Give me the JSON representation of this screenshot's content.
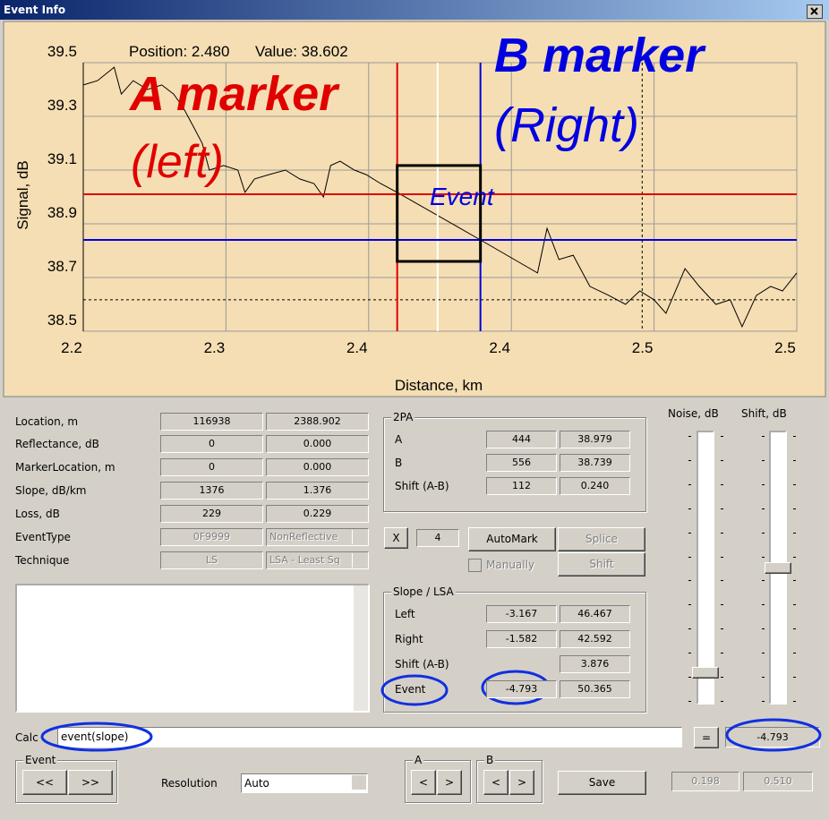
{
  "window": {
    "title": "Event Info"
  },
  "chart_data": {
    "type": "line",
    "cursor_text": [
      "Position: 2.480",
      "Value: 38.602"
    ],
    "x_label": "Distance, km",
    "y_label": "Signal, dB",
    "annotations": [
      "A marker",
      "(left)",
      "B marker",
      "(Right)",
      "Event"
    ],
    "xlim": [
      2.24,
      2.54
    ],
    "ylim": [
      38.5,
      39.5
    ],
    "xticks": [
      {
        "value": 2.24,
        "label": "2.2"
      },
      2.3,
      {
        "value": 2.36,
        "label": "2.4"
      },
      {
        "value": 2.42,
        "label": "2.4"
      },
      {
        "value": 2.48,
        "label": "2.5"
      },
      {
        "value": 2.54,
        "label": "2.5"
      }
    ],
    "yticks": [
      38.5,
      38.7,
      38.9,
      39.1,
      39.3,
      39.5
    ],
    "grid": true,
    "series": [
      {
        "color": "#000000",
        "x": [
          2.24,
          2.246,
          2.253,
          2.256,
          2.261,
          2.267,
          2.273,
          2.278,
          2.282,
          2.286,
          2.29,
          2.293,
          2.299,
          2.305,
          2.308,
          2.312,
          2.318,
          2.325,
          2.331,
          2.337,
          2.341,
          2.344,
          2.348,
          2.354,
          2.359,
          2.365,
          2.372,
          2.407,
          2.431,
          2.435,
          2.44,
          2.446,
          2.453,
          2.461,
          2.468,
          2.474,
          2.48,
          2.485,
          2.493,
          2.499,
          2.506,
          2.512,
          2.517,
          2.523,
          2.529,
          2.534,
          2.54
        ],
        "values": [
          39.417,
          39.433,
          39.483,
          39.383,
          39.433,
          39.4,
          39.417,
          39.383,
          39.333,
          39.267,
          39.2,
          39.1,
          39.117,
          39.1,
          39.017,
          39.067,
          39.083,
          39.1,
          39.067,
          39.05,
          39.0,
          39.117,
          39.133,
          39.1,
          39.083,
          39.05,
          39.017,
          38.84,
          38.717,
          38.883,
          38.767,
          38.783,
          38.667,
          38.633,
          38.6,
          38.65,
          38.617,
          38.567,
          38.733,
          38.667,
          38.6,
          38.617,
          38.517,
          38.633,
          38.667,
          38.65,
          38.717
        ]
      }
    ],
    "a_marker": {
      "x": 2.372,
      "y": 39.01,
      "color": "#e00000"
    },
    "b_marker": {
      "x": 2.407,
      "y": 38.84,
      "color": "#0000e0"
    },
    "cursor_x": 2.389,
    "ref_marker": {
      "x": 2.475,
      "y": 38.617
    },
    "event_box": {
      "x": [
        2.372,
        2.407
      ],
      "y": [
        38.76,
        39.117
      ]
    }
  },
  "fields": {
    "rows": [
      {
        "label": "Location, m",
        "values": [
          "116938",
          "2388.902"
        ]
      },
      {
        "label": "Reflectance, dB",
        "values": [
          "0",
          "0.000"
        ]
      },
      {
        "label": "MarkerLocation, m",
        "values": [
          "0",
          "0.000"
        ]
      },
      {
        "label": "Slope, dB/km",
        "values": [
          "1376",
          "1.376"
        ]
      },
      {
        "label": "Loss, dB",
        "values": [
          "229",
          "0.229"
        ]
      },
      {
        "label": "EventType",
        "values": [
          "0F9999",
          "NonReflective"
        ]
      },
      {
        "label": "Technique",
        "values": [
          "LS",
          "LSA - Least Sq"
        ]
      }
    ]
  },
  "two_pa": {
    "title": "2PA",
    "rows": [
      {
        "label": "A",
        "values": [
          "444",
          "38.979"
        ]
      },
      {
        "label": "B",
        "values": [
          "556",
          "38.739"
        ]
      },
      {
        "label": "Shift (A-B)",
        "values": [
          "112",
          "0.240"
        ]
      }
    ]
  },
  "controls": {
    "x_button": "X",
    "count": "4",
    "automark": "AutoMark",
    "splice": "Splice",
    "manually": "Manually",
    "shift": "Shift"
  },
  "slope_lsa": {
    "title": "Slope / LSA",
    "rows": [
      {
        "label": "Left",
        "values": [
          "-3.167",
          "46.467"
        ]
      },
      {
        "label": "Right",
        "values": [
          "-1.582",
          "42.592"
        ]
      },
      {
        "label": "Shift (A-B)",
        "values": [
          "3.876"
        ]
      },
      {
        "label": "Event",
        "values": [
          "-4.793",
          "50.365"
        ]
      }
    ]
  },
  "sliders": {
    "noise": "Noise, dB",
    "shift": "Shift, dB"
  },
  "calc": {
    "label": "Calc",
    "expression": "event(slope)",
    "equals": "=",
    "result": "-4.793"
  },
  "bottom": {
    "event_group": "Event",
    "prev": "<<",
    "next": ">>",
    "resolution_label": "Resolution",
    "resolution": "Auto",
    "a_group": "A",
    "b_group": "B",
    "left": "<",
    "right": ">",
    "save": "Save",
    "readouts": [
      "0.198",
      "0.510"
    ]
  }
}
